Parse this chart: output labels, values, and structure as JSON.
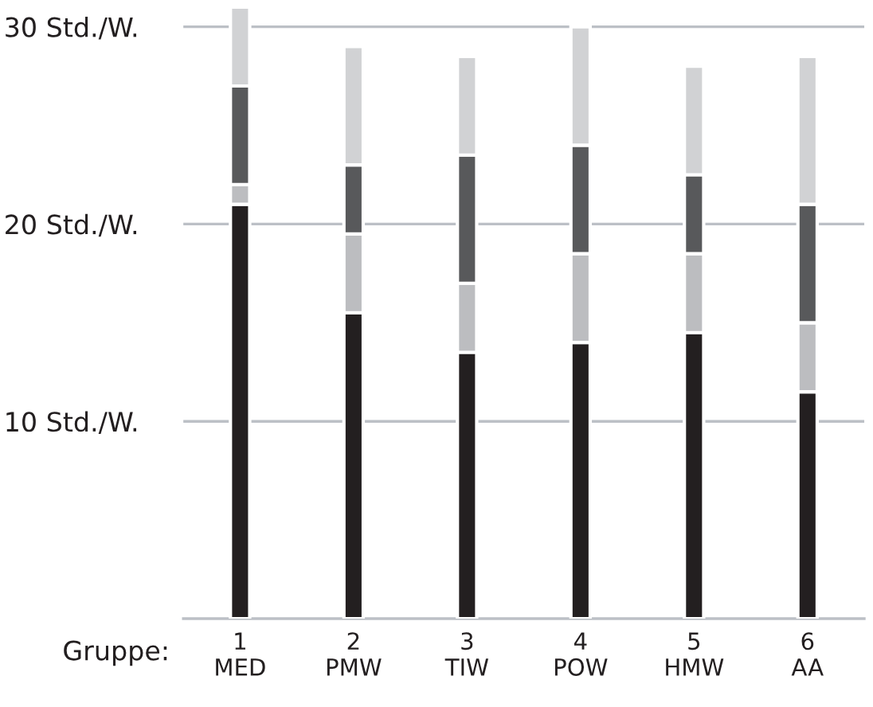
{
  "chart_data": {
    "type": "bar",
    "stacked": true,
    "xlabel": "Gruppe:",
    "categories": [
      "1\nMED",
      "2\nPMW",
      "3\nTIW",
      "4\nPOW",
      "5\nHMW",
      "6\nAA"
    ],
    "series": [
      {
        "color": "#231f20",
        "values": [
          21,
          15.5,
          13.5,
          14,
          14.5,
          11.5
        ]
      },
      {
        "color": "#bcbdc0",
        "values": [
          1,
          4,
          3.5,
          4.5,
          4,
          3.5
        ]
      },
      {
        "color": "#58595b",
        "values": [
          5,
          3.5,
          6.5,
          5.5,
          4,
          6
        ]
      },
      {
        "color": "#d1d2d4",
        "values": [
          4,
          6,
          5,
          6,
          5.5,
          7.5
        ]
      }
    ],
    "ylim": [
      0,
      31
    ],
    "yticks": [
      {
        "value": 10,
        "label": "10 Std./W."
      },
      {
        "value": 20,
        "label": "20 Std./W."
      },
      {
        "value": 30,
        "label": "30 Std./W."
      }
    ],
    "grid": "y",
    "legend": false
  }
}
